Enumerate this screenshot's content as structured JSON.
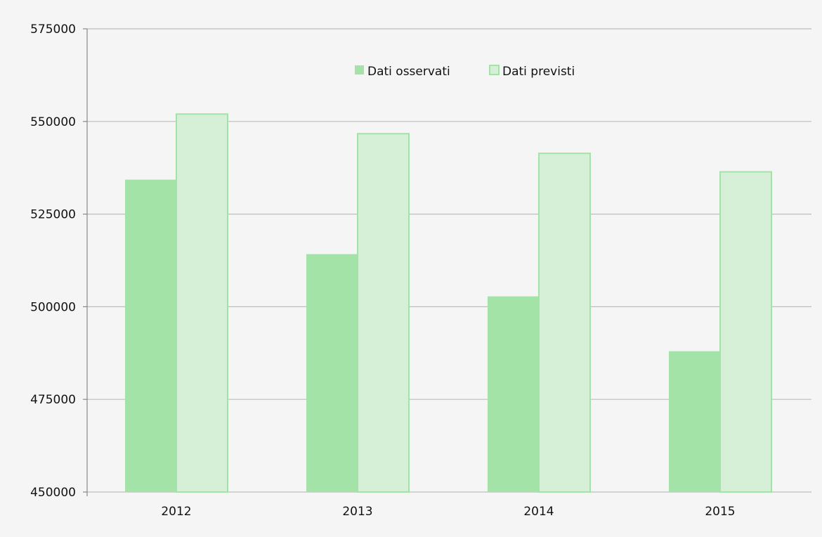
{
  "colors": {
    "background": "#f5f5f5",
    "observed_fill": "#a4e3a7",
    "predicted_fill": "#d6efd7",
    "predicted_stroke": "#a4e3a7",
    "grid": "#bdbdbd",
    "axis": "#888888",
    "text": "#111111"
  },
  "chart_data": {
    "type": "bar",
    "title": "",
    "xlabel": "",
    "ylabel": "",
    "categories": [
      "2012",
      "2013",
      "2014",
      "2015"
    ],
    "series": [
      {
        "name": "Dati osservati",
        "values": [
          534300,
          514200,
          502800,
          488000
        ]
      },
      {
        "name": "Dati previsti",
        "values": [
          552000,
          546700,
          541400,
          536400
        ]
      }
    ],
    "ylim": [
      450000,
      575000
    ],
    "yticks": [
      450000,
      475000,
      500000,
      525000,
      550000,
      575000
    ],
    "ytick_labels": [
      "450000",
      "475000",
      "500000",
      "525000",
      "550000",
      "575000"
    ],
    "grid": true,
    "legend": {
      "position": "top-center"
    }
  }
}
